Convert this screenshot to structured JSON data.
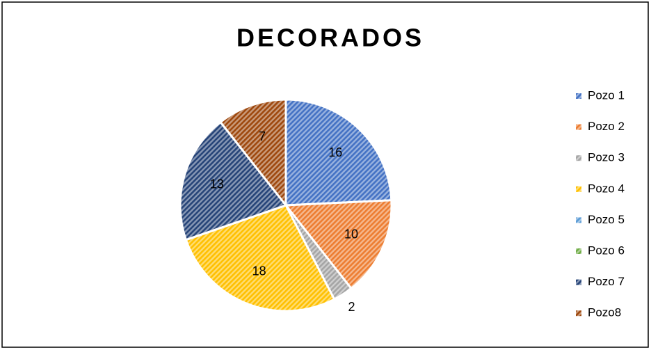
{
  "chart_data": {
    "type": "pie",
    "title": "DECORADOS",
    "categories": [
      "Pozo 1",
      "Pozo 2",
      "Pozo 3",
      "Pozo 4",
      "Pozo 5",
      "Pozo 6",
      "Pozo 7",
      "Pozo8"
    ],
    "values": [
      16,
      10,
      2,
      18,
      0,
      0,
      13,
      7
    ],
    "colors": [
      "#4472c4",
      "#ed7d31",
      "#a5a5a5",
      "#ffc000",
      "#5b9bd5",
      "#70ad47",
      "#264478",
      "#9e480e"
    ],
    "legend": "right"
  }
}
